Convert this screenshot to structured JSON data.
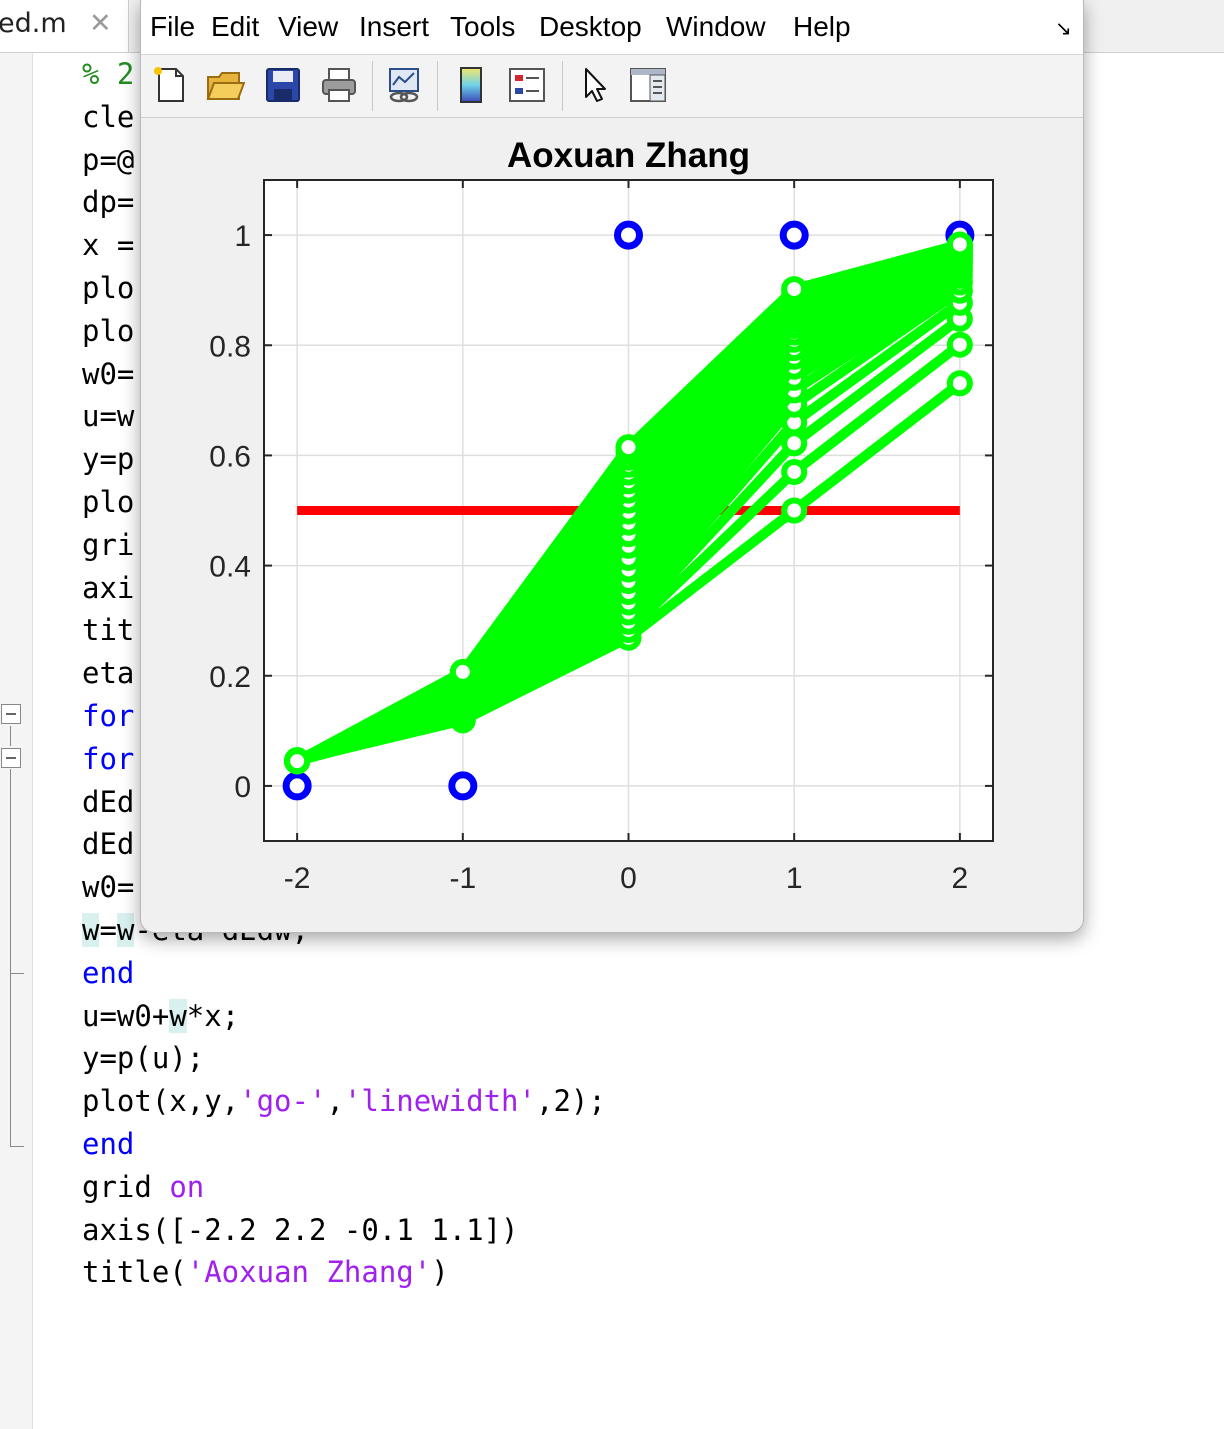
{
  "editor": {
    "tab": {
      "filename": "ed.m",
      "close_glyph": "✕"
    },
    "code_lines": [
      [
        {
          "t": "% 2",
          "c": "comment"
        }
      ],
      [
        {
          "t": "cle"
        }
      ],
      [
        {
          "t": "p=@"
        }
      ],
      [
        {
          "t": "dp=("
        }
      ],
      [
        {
          "t": "x ="
        }
      ],
      [
        {
          "t": "plo"
        }
      ],
      [
        {
          "t": "plo"
        }
      ],
      [
        {
          "t": "w0="
        }
      ],
      [
        {
          "t": "u=w"
        }
      ],
      [
        {
          "t": "y=p"
        }
      ],
      [
        {
          "t": "plo"
        }
      ],
      [
        {
          "t": "gri"
        }
      ],
      [
        {
          "t": "axi"
        }
      ],
      [
        {
          "t": "tit"
        }
      ],
      [
        {
          "t": "eta"
        }
      ],
      [
        {
          "t": "for",
          "c": "keyword"
        }
      ],
      [
        {
          "t": "for",
          "c": "keyword"
        }
      ],
      [
        {
          "t": "dEd"
        }
      ],
      [
        {
          "t": "dEd"
        }
      ],
      [
        {
          "t": "w0="
        }
      ],
      [
        {
          "t": "w",
          "hl": true
        },
        {
          "t": "="
        },
        {
          "t": "w",
          "hl": true
        },
        {
          "t": "-eta*dEdw;"
        }
      ],
      [
        {
          "t": "end",
          "c": "keyword"
        }
      ],
      [
        {
          "t": "u=w0+"
        },
        {
          "t": "w",
          "hl": true
        },
        {
          "t": "*x;"
        }
      ],
      [
        {
          "t": "y=p(u);"
        }
      ],
      [
        {
          "t": "plot(x,y,"
        },
        {
          "t": "'go-'",
          "c": "string"
        },
        {
          "t": ","
        },
        {
          "t": "'linewidth'",
          "c": "string"
        },
        {
          "t": ",2);"
        }
      ],
      [
        {
          "t": "end",
          "c": "keyword"
        }
      ],
      [
        {
          "t": "grid "
        },
        {
          "t": "on",
          "c": "string"
        }
      ],
      [
        {
          "t": "axis([-2.2 2.2 -0.1 1.1])"
        }
      ],
      [
        {
          "t": "title("
        },
        {
          "t": "'Aoxuan Zhang'",
          "c": "string"
        },
        {
          "t": ")"
        }
      ]
    ],
    "colors": {
      "comment": "#228b22",
      "keyword": "#0000ff",
      "string": "#a020f0"
    }
  },
  "figure": {
    "menus": [
      "File",
      "Edit",
      "View",
      "Insert",
      "Tools",
      "Desktop",
      "Window",
      "Help"
    ],
    "dock_glyph": "↘",
    "toolbar": [
      "new-figure-icon",
      "open-file-icon",
      "save-icon",
      "print-icon",
      "link-plot-icon",
      "colorbar-icon",
      "legend-icon",
      "pointer-icon",
      "property-inspector-icon"
    ]
  },
  "chart_data": {
    "type": "line",
    "title": "Aoxuan Zhang",
    "xlim": [
      -2.2,
      2.2
    ],
    "ylim": [
      -0.1,
      1.1
    ],
    "xticks": [
      -2,
      -1,
      0,
      1,
      2
    ],
    "yticks": [
      0,
      0.2,
      0.4,
      0.6,
      0.8,
      1
    ],
    "grid": true,
    "threshold": {
      "y": 0.5,
      "x_range": [
        -2,
        2
      ],
      "color": "#ff0000"
    },
    "targets": {
      "x": [
        -2,
        -1,
        0,
        1,
        2
      ],
      "y": [
        0,
        0,
        1,
        1,
        1
      ],
      "color": "#0000ff"
    },
    "curve_color": "#00ff00",
    "x": [
      -2,
      -1,
      0,
      1,
      2
    ],
    "curves": [
      [
        0.047,
        0.119,
        0.269,
        0.5,
        0.731
      ],
      [
        0.046,
        0.122,
        0.283,
        0.57,
        0.801
      ],
      [
        0.045,
        0.126,
        0.298,
        0.622,
        0.848
      ],
      [
        0.045,
        0.131,
        0.315,
        0.66,
        0.877
      ],
      [
        0.045,
        0.136,
        0.333,
        0.692,
        0.899
      ],
      [
        0.045,
        0.141,
        0.352,
        0.718,
        0.914
      ],
      [
        0.045,
        0.146,
        0.372,
        0.741,
        0.926
      ],
      [
        0.045,
        0.152,
        0.393,
        0.761,
        0.935
      ],
      [
        0.045,
        0.157,
        0.414,
        0.779,
        0.943
      ],
      [
        0.045,
        0.163,
        0.436,
        0.795,
        0.95
      ],
      [
        0.045,
        0.168,
        0.457,
        0.81,
        0.955
      ],
      [
        0.045,
        0.174,
        0.478,
        0.823,
        0.96
      ],
      [
        0.045,
        0.179,
        0.498,
        0.835,
        0.964
      ],
      [
        0.045,
        0.184,
        0.518,
        0.846,
        0.967
      ],
      [
        0.045,
        0.189,
        0.536,
        0.856,
        0.97
      ],
      [
        0.045,
        0.193,
        0.553,
        0.865,
        0.972
      ],
      [
        0.045,
        0.197,
        0.569,
        0.874,
        0.975
      ],
      [
        0.045,
        0.2,
        0.583,
        0.882,
        0.977
      ],
      [
        0.045,
        0.203,
        0.596,
        0.889,
        0.979
      ],
      [
        0.045,
        0.205,
        0.607,
        0.896,
        0.981
      ],
      [
        0.045,
        0.207,
        0.615,
        0.902,
        0.983
      ]
    ]
  }
}
